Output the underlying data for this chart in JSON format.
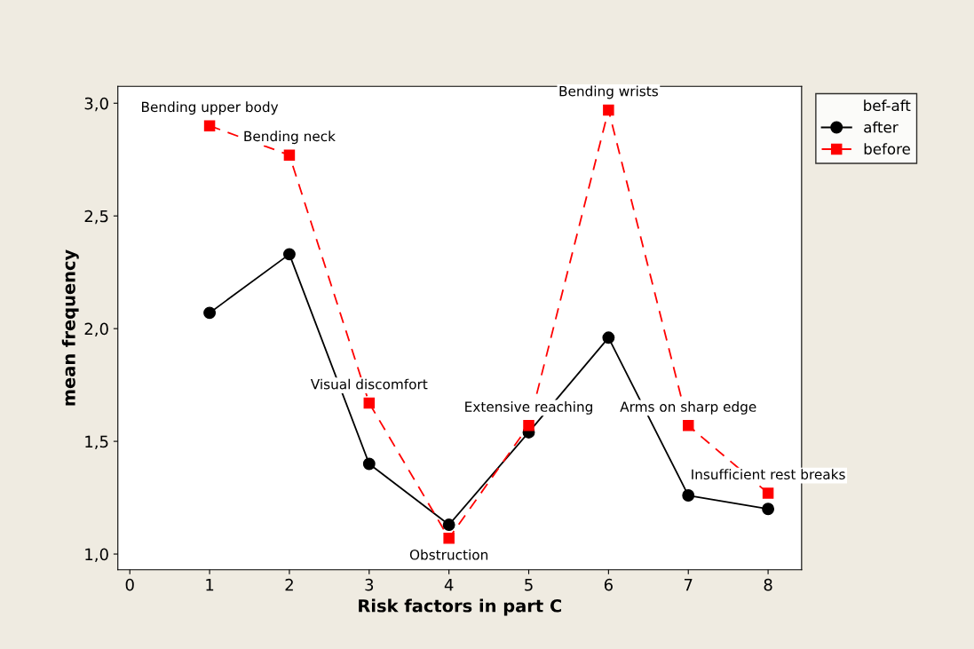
{
  "chart_data": {
    "type": "line",
    "xlabel": "Risk factors in part C",
    "ylabel": "mean frequency",
    "legend_title": "bef-aft",
    "x": [
      1,
      2,
      3,
      4,
      5,
      6,
      7,
      8
    ],
    "series": [
      {
        "name": "after",
        "color": "#000000",
        "values": [
          2.07,
          2.33,
          1.4,
          1.13,
          1.54,
          1.96,
          1.26,
          1.2
        ],
        "marker": "circle",
        "line_style": "solid"
      },
      {
        "name": "before",
        "color": "#ff0000",
        "values": [
          2.9,
          2.77,
          1.67,
          1.07,
          1.57,
          2.97,
          1.57,
          1.27
        ],
        "marker": "square",
        "line_style": "dashed"
      }
    ],
    "annotations": [
      {
        "text": "Bending upper body",
        "x": 1,
        "y": 2.9
      },
      {
        "text": "Bending neck",
        "x": 2,
        "y": 2.77
      },
      {
        "text": "Visual discomfort",
        "x": 3,
        "y": 1.67
      },
      {
        "text": "Obstruction",
        "x": 4,
        "y": 1.07
      },
      {
        "text": "Extensive reaching",
        "x": 5,
        "y": 1.57
      },
      {
        "text": "Bending wrists",
        "x": 6,
        "y": 2.97
      },
      {
        "text": "Arms on sharp edge",
        "x": 7,
        "y": 1.57
      },
      {
        "text": "Insufficient rest breaks",
        "x": 8,
        "y": 1.27
      }
    ],
    "xlim": [
      -0.15,
      8.42
    ],
    "ylim": [
      0.93,
      3.075
    ],
    "xticks": [
      0,
      1,
      2,
      3,
      4,
      5,
      6,
      7,
      8
    ],
    "yticks": [
      {
        "value": 1.0,
        "label": "1,0"
      },
      {
        "value": 1.5,
        "label": "1,5"
      },
      {
        "value": 2.0,
        "label": "2,0"
      },
      {
        "value": 2.5,
        "label": "2,5"
      },
      {
        "value": 3.0,
        "label": "3,0"
      }
    ],
    "grid": false,
    "legend": "top right"
  }
}
